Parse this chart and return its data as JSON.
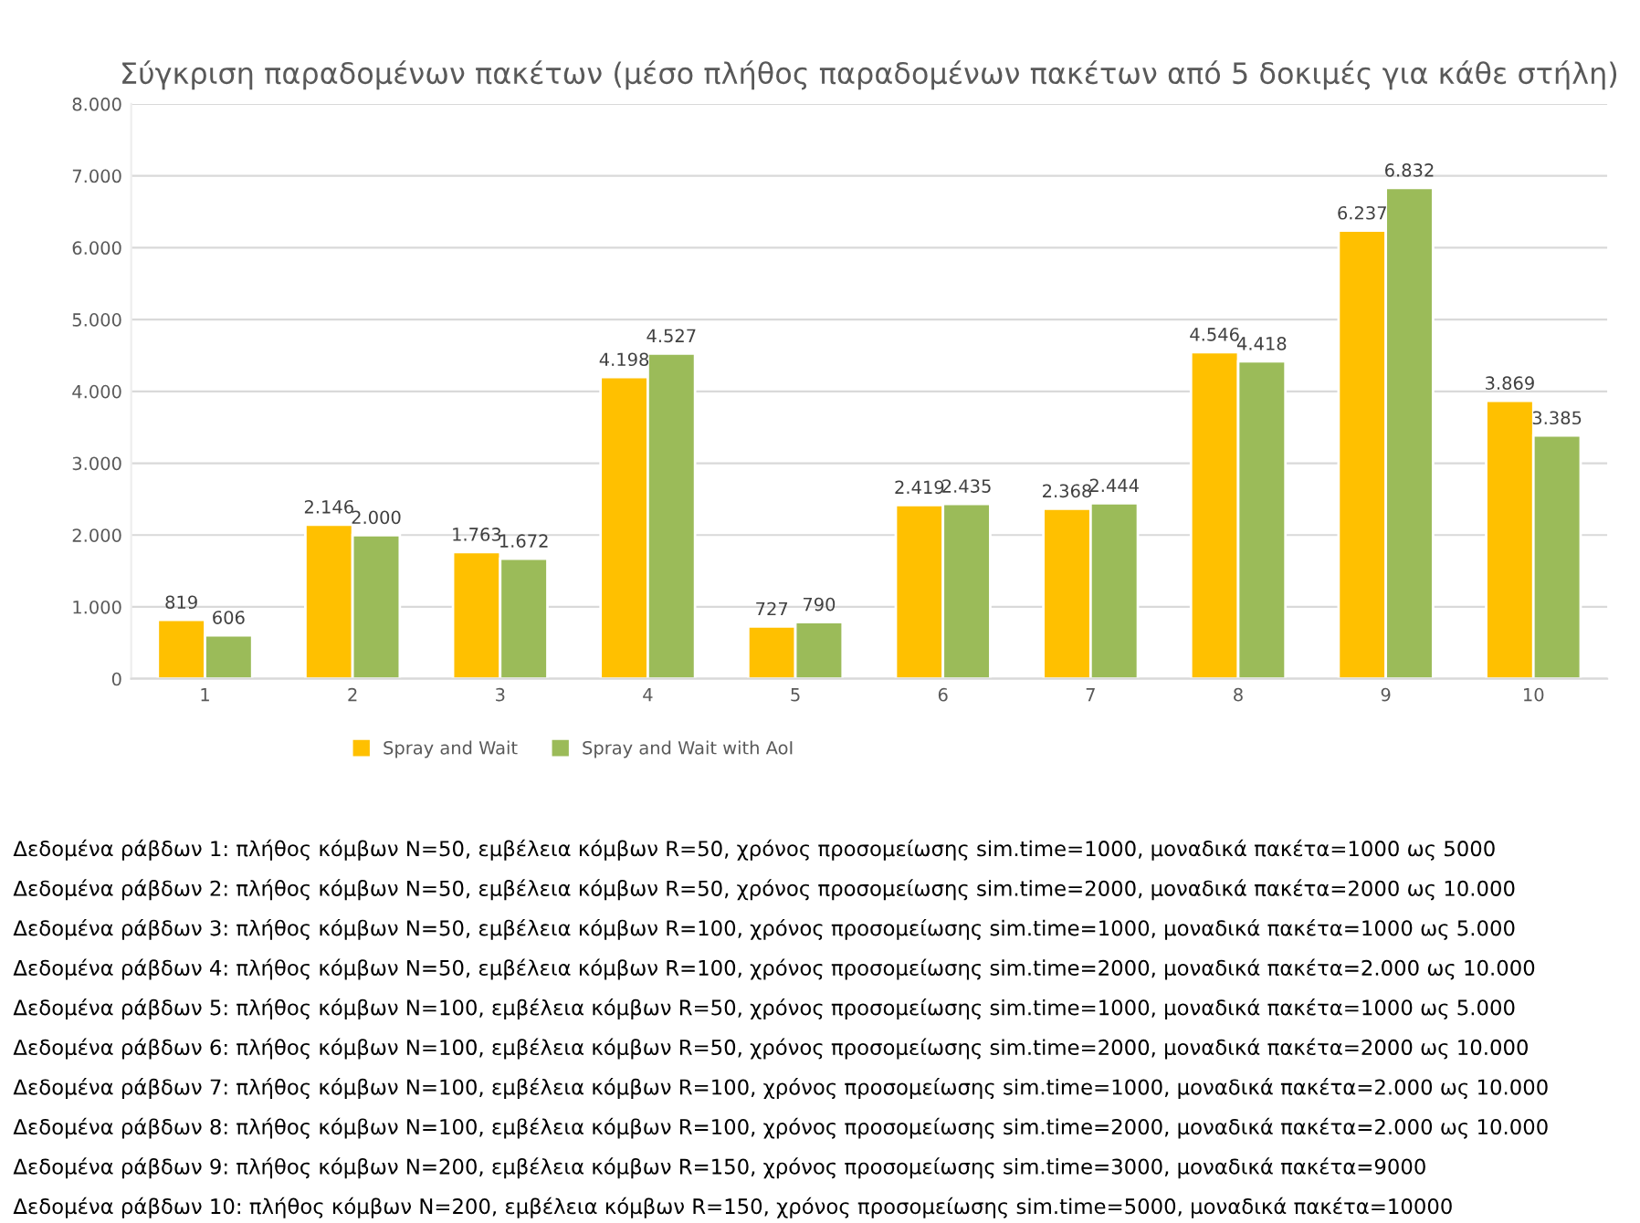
{
  "chart_data": {
    "type": "bar",
    "title": "Σύγκριση παραδομένων πακέτων (μέσο πλήθος παραδομένων πακέτων από 5 δοκιμές για κάθε στήλη)",
    "categories": [
      "1",
      "2",
      "3",
      "4",
      "5",
      "6",
      "7",
      "8",
      "9",
      "10"
    ],
    "series": [
      {
        "name": "Spray and Wait",
        "color": "#ffc000",
        "values": [
          819,
          2146,
          1763,
          4198,
          727,
          2419,
          2368,
          4546,
          6237,
          3869
        ],
        "value_labels": [
          "819",
          "2.146",
          "1.763",
          "4.198",
          "727",
          "2.419",
          "2.368",
          "4.546",
          "6.237",
          "3.869"
        ]
      },
      {
        "name": "Spray and Wait with AoI",
        "color": "#9bbb59",
        "values": [
          606,
          2000,
          1672,
          4527,
          790,
          2435,
          2444,
          4418,
          6832,
          3385
        ],
        "value_labels": [
          "606",
          "2.000",
          "1.672",
          "4.527",
          "790",
          "2.435",
          "2.444",
          "4.418",
          "6.832",
          "3.385"
        ]
      }
    ],
    "ylim": [
      0,
      8000
    ],
    "yticks": [
      0,
      {
        "value": 1000,
        "label": "1.000"
      },
      {
        "value": 2000,
        "label": "2.000"
      },
      {
        "value": 3000,
        "label": "3.000"
      },
      {
        "value": 4000,
        "label": "4.000"
      },
      {
        "value": 5000,
        "label": "5.000"
      },
      {
        "value": 6000,
        "label": "6.000"
      },
      {
        "value": 7000,
        "label": "7.000"
      },
      {
        "value": 8000,
        "label": "8.000"
      }
    ],
    "grid": "y",
    "legend": "bottom",
    "annotations": [
      "Δεδομένα ράβδων 1: πλήθος κόμβων N=50, εμβέλεια κόμβων R=50, χρόνος προσομείωσης sim.time=1000, μοναδικά πακέτα=1000 ως 5000",
      "Δεδομένα ράβδων 2: πλήθος κόμβων N=50, εμβέλεια κόμβων R=50, χρόνος προσομείωσης sim.time=2000, μοναδικά πακέτα=2000 ως 10.000",
      "Δεδομένα ράβδων 3: πλήθος κόμβων N=50, εμβέλεια κόμβων R=100, χρόνος προσομείωσης sim.time=1000, μοναδικά πακέτα=1000 ως 5.000",
      "Δεδομένα ράβδων 4: πλήθος κόμβων N=50, εμβέλεια κόμβων R=100, χρόνος προσομείωσης sim.time=2000, μοναδικά πακέτα=2.000 ως 10.000",
      "Δεδομένα ράβδων 5: πλήθος κόμβων N=100, εμβέλεια κόμβων R=50, χρόνος προσομείωσης sim.time=1000, μοναδικά πακέτα=1000 ως 5.000",
      "Δεδομένα ράβδων 6: πλήθος κόμβων N=100, εμβέλεια κόμβων R=50, χρόνος προσομείωσης sim.time=2000, μοναδικά πακέτα=2000 ως 10.000",
      "Δεδομένα ράβδων 7: πλήθος κόμβων N=100, εμβέλεια κόμβων R=100, χρόνος προσομείωσης sim.time=1000, μοναδικά πακέτα=2.000 ως 10.000",
      "Δεδομένα ράβδων 8: πλήθος κόμβων N=100, εμβέλεια κόμβων R=100, χρόνος προσομείωσης sim.time=2000, μοναδικά πακέτα=2.000 ως 10.000",
      "Δεδομένα ράβδων 9: πλήθος κόμβων N=200, εμβέλεια κόμβων R=150, χρόνος προσομείωσης sim.time=3000, μοναδικά πακέτα=9000",
      "Δεδομένα ράβδων 10: πλήθος κόμβων N=200, εμβέλεια κόμβων R=150, χρόνος προσομείωσης sim.time=5000, μοναδικά πακέτα=10000"
    ]
  }
}
